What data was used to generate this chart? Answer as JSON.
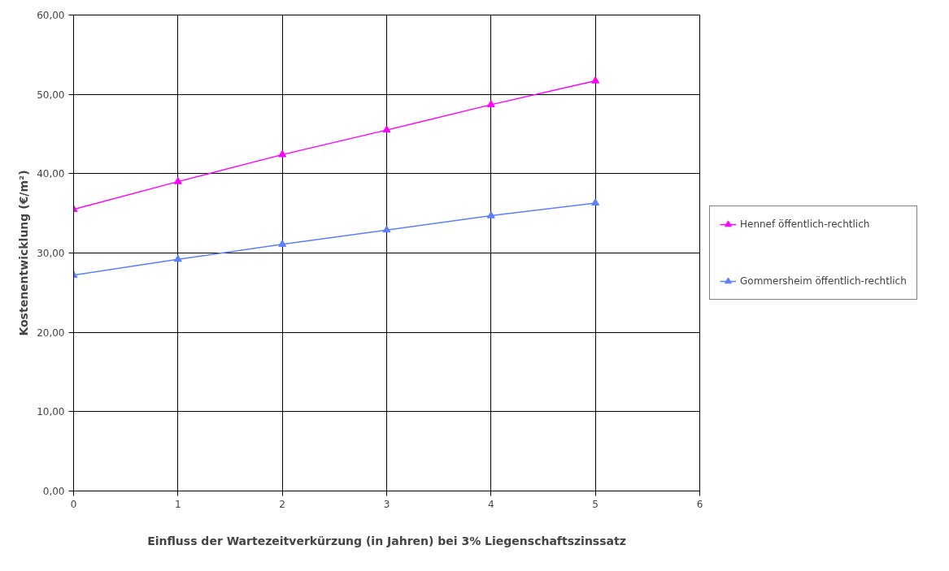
{
  "chart_data": {
    "type": "line",
    "xlabel": "Einfluss der Wartezeitverkürzung (in Jahren) bei 3% Liegenschaftszinssatz",
    "ylabel": "Kostenentwicklung (€/m²)",
    "x": [
      0,
      1,
      2,
      3,
      4,
      5
    ],
    "series": [
      {
        "name": "Hennef öffentlich-rechtlich",
        "color": "#ff00ff",
        "values": [
          35.5,
          39.0,
          42.4,
          45.5,
          48.7,
          51.7
        ]
      },
      {
        "name": "Gommersheim öffentlich-rechtlich",
        "color": "#5b7fff",
        "values": [
          27.2,
          29.2,
          31.1,
          32.9,
          34.7,
          36.3
        ]
      }
    ],
    "xlim": [
      0,
      6
    ],
    "xticks": [
      0,
      1,
      2,
      3,
      4,
      5,
      6
    ],
    "ylim": [
      0,
      60
    ],
    "yticks": [
      {
        "value": 0,
        "label": "0,00"
      },
      {
        "value": 10,
        "label": "10,00"
      },
      {
        "value": 20,
        "label": "20,00"
      },
      {
        "value": 30,
        "label": "30,00"
      },
      {
        "value": 40,
        "label": "40,00"
      },
      {
        "value": 50,
        "label": "50,00"
      },
      {
        "value": 60,
        "label": "60,00"
      }
    ],
    "grid": true,
    "legend": "right",
    "marker": "triangle",
    "line_style": "solid"
  }
}
